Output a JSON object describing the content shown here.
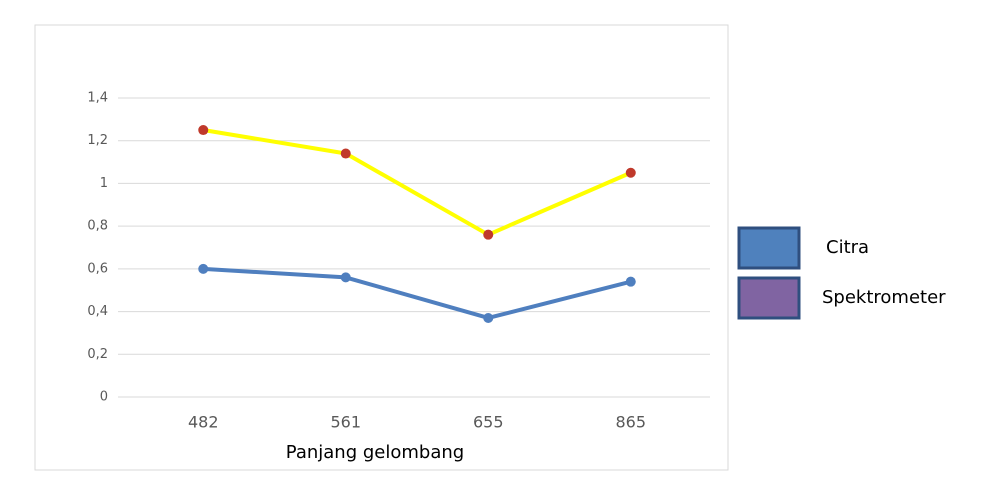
{
  "chart_data": {
    "type": "line",
    "x_label": "Panjang gelombang",
    "categories": [
      "482",
      "561",
      "655",
      "865"
    ],
    "series": [
      {
        "name": "Citra",
        "color": "#4f7fbf",
        "marker_color": "#4f7fbf",
        "legend_color": "#4f81bd",
        "values": [
          0.6,
          0.56,
          0.37,
          0.54
        ]
      },
      {
        "name": "Spektrometer",
        "color": "#ffff00",
        "marker_color": "#c0392b",
        "legend_color": "#8064a2",
        "values": [
          1.25,
          1.14,
          0.76,
          1.05
        ]
      }
    ],
    "ylim": [
      0,
      1.4
    ],
    "yticks": [
      0,
      {
        "value": 0.2,
        "label": "0,2"
      },
      {
        "value": 0.4,
        "label": "0,4"
      },
      {
        "value": 0.6,
        "label": "0,6"
      },
      {
        "value": 0.8,
        "label": "0,8"
      },
      1,
      {
        "value": 1.2,
        "label": "1,2"
      },
      {
        "value": 1.4,
        "label": "1,4"
      }
    ],
    "grid": true
  }
}
